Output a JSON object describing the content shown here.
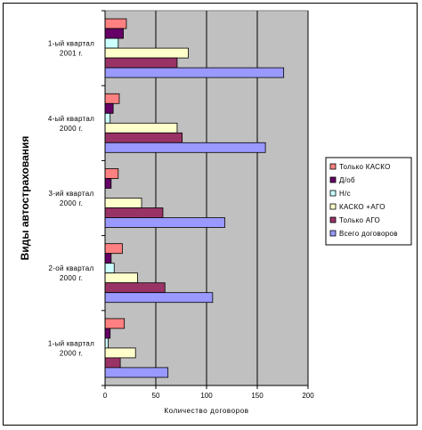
{
  "chart_data": {
    "type": "bar",
    "orientation": "horizontal",
    "title": "",
    "xlabel": "Количество договоров",
    "ylabel": "Виды автострахования",
    "xlim": [
      0,
      200
    ],
    "xticks": [
      0,
      50,
      100,
      150,
      200
    ],
    "grid": true,
    "legend_position": "right",
    "categories": [
      [
        "1-ый квартал",
        "2001 г."
      ],
      [
        "4-ый квартал",
        "2000 г."
      ],
      [
        "3-ий квартал",
        "2000 г."
      ],
      [
        "2-ой квартал",
        "2000 г."
      ],
      [
        "1-ый квартал",
        "2000 г."
      ]
    ],
    "series": [
      {
        "name": "Только КАСКО",
        "color": "#ff8080",
        "values": [
          21,
          14,
          13,
          17,
          19
        ]
      },
      {
        "name": "Д/об",
        "color": "#660066",
        "values": [
          18,
          8,
          6,
          6,
          5
        ]
      },
      {
        "name": "Н/с",
        "color": "#ccffff",
        "values": [
          13,
          5,
          0,
          9,
          3
        ]
      },
      {
        "name": "КАСКО +АГО",
        "color": "#ffffcc",
        "values": [
          82,
          71,
          36,
          32,
          30
        ]
      },
      {
        "name": "Только АГО",
        "color": "#993366",
        "values": [
          71,
          76,
          57,
          59,
          15
        ]
      },
      {
        "name": "Всего договоров",
        "color": "#9999ff",
        "values": [
          176,
          158,
          118,
          106,
          62
        ]
      }
    ]
  }
}
